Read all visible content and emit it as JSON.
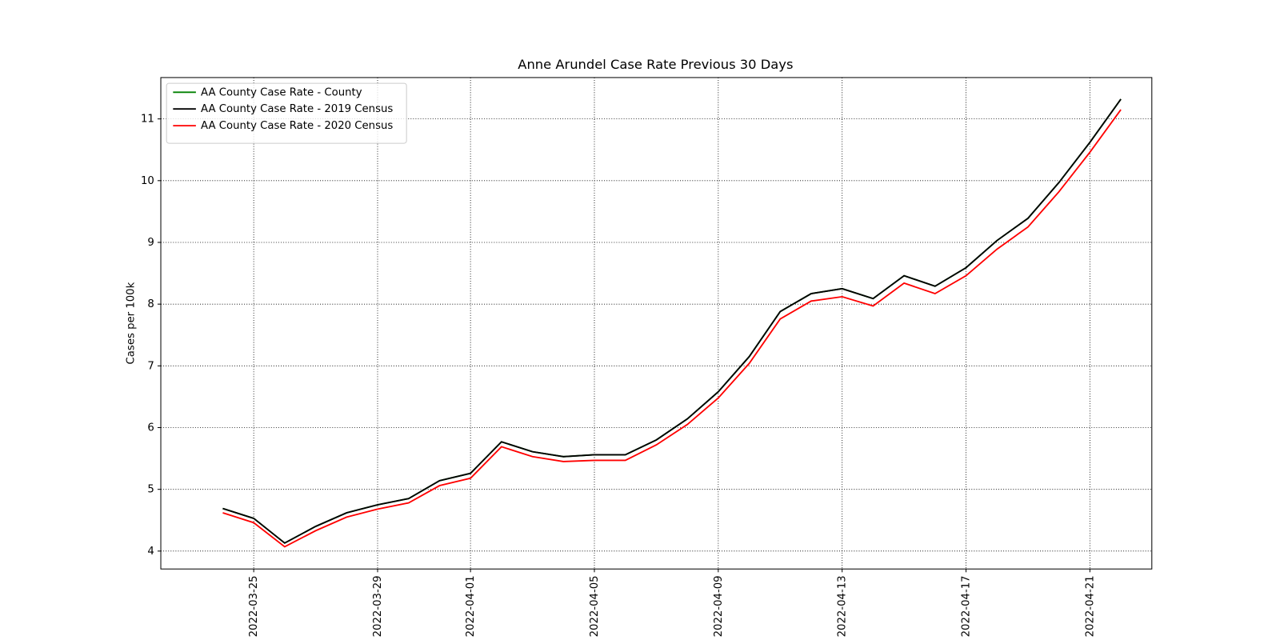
{
  "chart_data": {
    "type": "line",
    "title": "Anne Arundel Case Rate Previous 30 Days",
    "y_label": "Cases per 100k",
    "x": [
      "2022-03-24",
      "2022-03-25",
      "2022-03-26",
      "2022-03-27",
      "2022-03-28",
      "2022-03-29",
      "2022-03-30",
      "2022-03-31",
      "2022-04-01",
      "2022-04-02",
      "2022-04-03",
      "2022-04-04",
      "2022-04-05",
      "2022-04-06",
      "2022-04-07",
      "2022-04-08",
      "2022-04-09",
      "2022-04-10",
      "2022-04-11",
      "2022-04-12",
      "2022-04-13",
      "2022-04-14",
      "2022-04-15",
      "2022-04-16",
      "2022-04-17",
      "2022-04-18",
      "2022-04-19",
      "2022-04-20",
      "2022-04-21",
      "2022-04-22"
    ],
    "series": [
      {
        "name": "AA County Case Rate - County",
        "color": "green",
        "values": [
          4.69,
          4.53,
          4.13,
          4.4,
          4.62,
          4.75,
          4.85,
          5.14,
          5.26,
          5.77,
          5.61,
          5.53,
          5.56,
          5.56,
          5.8,
          6.14,
          6.58,
          7.15,
          7.88,
          8.17,
          8.25,
          8.09,
          8.46,
          8.29,
          8.59,
          9.03,
          9.39,
          9.97,
          10.62,
          11.32
        ]
      },
      {
        "name": "AA County Case Rate - 2019 Census",
        "color": "black",
        "values": [
          4.69,
          4.53,
          4.13,
          4.4,
          4.62,
          4.75,
          4.85,
          5.14,
          5.26,
          5.77,
          5.61,
          5.53,
          5.56,
          5.56,
          5.8,
          6.14,
          6.58,
          7.15,
          7.88,
          8.17,
          8.25,
          8.09,
          8.46,
          8.29,
          8.59,
          9.03,
          9.39,
          9.97,
          10.62,
          11.32
        ]
      },
      {
        "name": "AA County Case Rate - 2020 Census",
        "color": "red",
        "values": [
          4.62,
          4.46,
          4.07,
          4.33,
          4.55,
          4.68,
          4.78,
          5.06,
          5.18,
          5.69,
          5.53,
          5.45,
          5.47,
          5.47,
          5.72,
          6.05,
          6.48,
          7.04,
          7.76,
          8.05,
          8.12,
          7.97,
          8.34,
          8.17,
          8.46,
          8.89,
          9.25,
          9.82,
          10.46,
          11.15
        ]
      }
    ],
    "xlim": [
      "2022-03-22",
      "2022-04-23"
    ],
    "xticks": [
      "2022-03-25",
      "2022-03-29",
      "2022-04-01",
      "2022-04-05",
      "2022-04-09",
      "2022-04-13",
      "2022-04-17",
      "2022-04-21"
    ],
    "ylim": [
      3.71,
      11.67
    ],
    "yticks": [
      4,
      5,
      6,
      7,
      8,
      9,
      10,
      11
    ],
    "grid": true,
    "legend": "upper left"
  }
}
